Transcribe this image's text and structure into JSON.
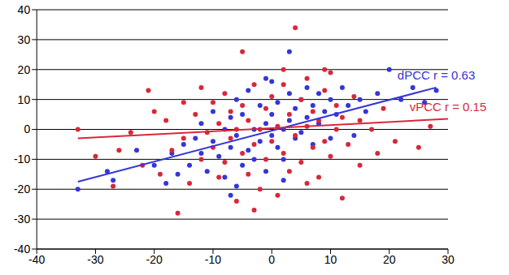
{
  "chart_data": {
    "type": "scatter",
    "xlim": [
      -40,
      30
    ],
    "xticks": [
      -40,
      -30,
      -20,
      -10,
      0,
      10,
      20,
      30
    ],
    "ylim": [
      -40,
      40
    ],
    "yticks": [
      -40,
      -30,
      -20,
      -10,
      0,
      10,
      20,
      30,
      40
    ],
    "grid": true,
    "series": [
      {
        "annotation": "dPCC r = 0.63",
        "color": "#3535d8",
        "fit_x": [
          -33,
          28
        ],
        "fit_y": [
          -17.5,
          14
        ],
        "x": [
          -33,
          -28,
          -27,
          -23,
          -20,
          -18,
          -17,
          -16,
          -15,
          -14,
          -13,
          -12,
          -12,
          -11,
          -10,
          -10,
          -9,
          -8,
          -8,
          -7,
          -7,
          -6,
          -6,
          -5,
          -5,
          -4,
          -4,
          -3,
          -3,
          -2,
          -2,
          -1,
          -1,
          0,
          0,
          0,
          1,
          1,
          2,
          2,
          3,
          3,
          4,
          4,
          5,
          5,
          6,
          6,
          7,
          7,
          8,
          8,
          9,
          10,
          10,
          11,
          12,
          13,
          14,
          15,
          16,
          18,
          20,
          22,
          24,
          26,
          28,
          3,
          -1,
          -7,
          -6,
          2
        ],
        "values": [
          -20,
          -14,
          -17,
          -7,
          -12,
          -18,
          -8,
          -15,
          -5,
          -12,
          -3,
          -8,
          2,
          -14,
          -4,
          6,
          -9,
          0,
          -16,
          4,
          -6,
          -2,
          10,
          -12,
          5,
          -7,
          13,
          0,
          -10,
          8,
          -4,
          2,
          -14,
          5,
          -2,
          16,
          -6,
          9,
          0,
          -10,
          12,
          3,
          -3,
          7,
          10,
          -1,
          4,
          14,
          -5,
          8,
          2,
          12,
          6,
          -3,
          10,
          5,
          14,
          8,
          -2,
          10,
          6,
          12,
          20,
          10,
          14,
          9,
          13,
          26,
          17,
          -22,
          -19,
          -17
        ]
      },
      {
        "annotation": "vPCC r = 0.15",
        "color": "#d8283a",
        "fit_x": [
          -33,
          30
        ],
        "fit_y": [
          -3,
          3.5
        ],
        "x": [
          -33,
          -30,
          -27,
          -26,
          -24,
          -22,
          -21,
          -20,
          -19,
          -18,
          -17,
          -16,
          -15,
          -15,
          -14,
          -13,
          -12,
          -12,
          -11,
          -10,
          -10,
          -9,
          -9,
          -8,
          -8,
          -7,
          -7,
          -6,
          -6,
          -5,
          -5,
          -5,
          -4,
          -4,
          -3,
          -3,
          -2,
          -2,
          -1,
          -1,
          0,
          0,
          1,
          1,
          2,
          2,
          3,
          3,
          4,
          4,
          5,
          5,
          6,
          6,
          7,
          7,
          8,
          8,
          9,
          9,
          10,
          10,
          11,
          11,
          12,
          12,
          13,
          14,
          15,
          15,
          17,
          18,
          19,
          21,
          25,
          27,
          9,
          -3,
          2,
          6
        ],
        "values": [
          0,
          -9,
          -19,
          -7,
          -1,
          -12,
          13,
          6,
          -15,
          3,
          -7,
          -28,
          9,
          -3,
          -18,
          5,
          -10,
          14,
          -1,
          9,
          -6,
          -16,
          2,
          -11,
          12,
          -3,
          6,
          -24,
          0,
          26,
          -8,
          8,
          -15,
          3,
          -5,
          15,
          -20,
          0,
          7,
          -10,
          -4,
          11,
          1,
          -22,
          -8,
          20,
          5,
          -14,
          34,
          -2,
          10,
          -11,
          1,
          17,
          -6,
          6,
          -16,
          3,
          13,
          -4,
          -9,
          19,
          0,
          8,
          -23,
          4,
          -5,
          11,
          -12,
          3,
          0,
          -8,
          7,
          -4,
          -6,
          1,
          20,
          -27,
          15,
          -18
        ]
      }
    ]
  }
}
